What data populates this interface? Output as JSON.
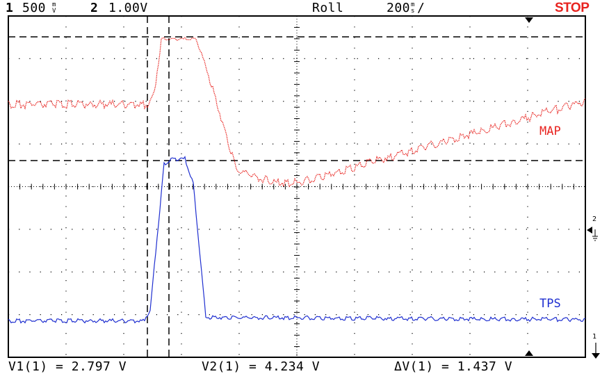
{
  "header": {
    "ch1_number": "1",
    "ch1_scale": "500",
    "ch1_unit_top": "m",
    "ch1_unit_bottom": "V",
    "ch2_number": "2",
    "ch2_scale": "1.00V",
    "mode": "Roll",
    "timebase_value": "200",
    "timebase_unit_top": "m",
    "timebase_unit_bottom": "s",
    "timebase_suffix": "/",
    "run_state": "STOP"
  },
  "traces": {
    "map_label": "MAP",
    "tps_label": "TPS",
    "map_color": "#e8231f",
    "tps_color": "#1f2fd0"
  },
  "markers": {
    "ch2_ground": "2",
    "ch1_ground": "1"
  },
  "measurements": {
    "v1": "V1(1) = 2.797 V",
    "v2": "V2(1) = 4.234 V",
    "dv": "ΔV(1) = 1.437 V"
  },
  "icons": {
    "trigger_marker": "trigger-position-triangle-icon",
    "ch2_ground": "ground-reference-icon",
    "ch1_ground": "ground-arrow-icon"
  }
}
